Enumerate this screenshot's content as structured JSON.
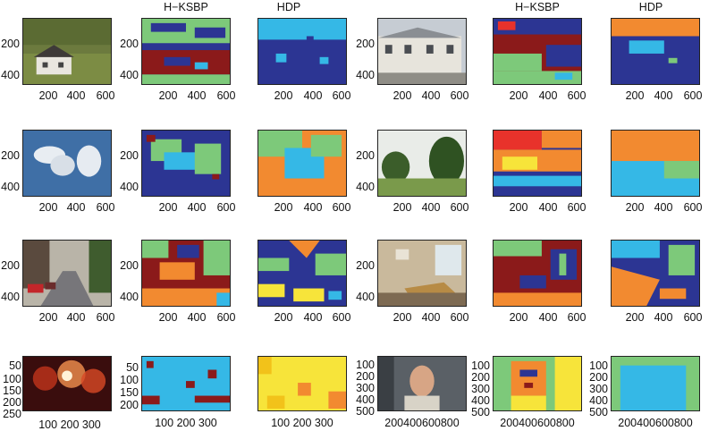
{
  "column_headers": [
    "H−KSBP",
    "HDP",
    "H−KSBP",
    "HDP"
  ],
  "colors": {
    "dark_blue": "#2c3593",
    "maroon": "#8b1a1a",
    "light_blue": "#35b8e6",
    "green": "#7dc97a",
    "orange": "#f28a30",
    "yellow": "#f7e43a",
    "red": "#e8322b",
    "bg": "#ffffff",
    "axis": "#222222"
  },
  "rows": [
    {
      "row": 1,
      "left_image": "house-photo",
      "right_image": "terraced-houses-photo",
      "yticks": [
        "200",
        "400"
      ],
      "xticks": [
        "200",
        "400",
        "600"
      ]
    },
    {
      "row": 2,
      "left_image": "clouds-photo",
      "right_image": "trees-field-photo",
      "yticks": [
        "200",
        "400"
      ],
      "xticks": [
        "200",
        "400",
        "600"
      ]
    },
    {
      "row": 3,
      "left_image": "street-cars-photo",
      "right_image": "meeting-room-photo",
      "yticks": [
        "200",
        "400"
      ],
      "xticks": [
        "200",
        "400",
        "600"
      ]
    },
    {
      "row": 4,
      "left_image": "fireworks-photo",
      "right_image": "portrait-photo",
      "yticks_left": [
        "50",
        "100",
        "150",
        "200",
        "250"
      ],
      "yticks_left_seg": [
        "50",
        "100",
        "150",
        "200"
      ],
      "xticks_left": "100 200 300",
      "yticks_right": [
        "100",
        "200",
        "300",
        "400",
        "500"
      ],
      "xticks_right": "200400600800"
    }
  ]
}
